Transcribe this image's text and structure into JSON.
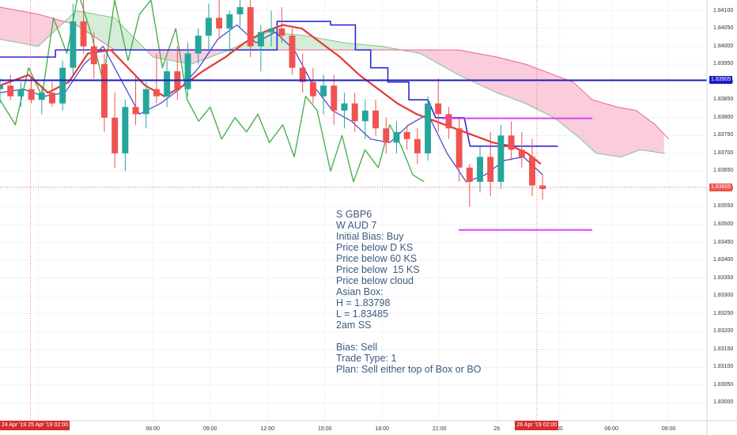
{
  "chart_data": {
    "type": "candlestick",
    "price_axis": {
      "ticks": [
        "1.84100",
        "1.84050",
        "1.84000",
        "1.83950",
        "1.83900",
        "1.83850",
        "1.83800",
        "1.83750",
        "1.83700",
        "1.83650",
        "1.83600",
        "1.83550",
        "1.83500",
        "1.83450",
        "1.83400",
        "1.83350",
        "1.83300",
        "1.83250",
        "1.83200",
        "1.83150",
        "1.83100",
        "1.83050",
        "1.83000"
      ],
      "range": [
        1.8295,
        1.8413
      ]
    },
    "time_axis": {
      "ticks": [
        {
          "label": "00",
          "t": 0
        },
        {
          "label": "06:00",
          "t": 6
        },
        {
          "label": "09:00",
          "t": 9
        },
        {
          "label": "12:00",
          "t": 12
        },
        {
          "label": "15:00",
          "t": 15
        },
        {
          "label": "18:00",
          "t": 18
        },
        {
          "label": "21:00",
          "t": 21
        },
        {
          "label": "26",
          "t": 24
        },
        {
          "label": "00",
          "t": 27.3
        },
        {
          "label": "06:00",
          "t": 30
        },
        {
          "label": "09:00",
          "t": 33
        }
      ],
      "range": [
        -2,
        35
      ]
    },
    "price_tags": [
      {
        "label": "1.83905",
        "value": 1.83905,
        "color": "#1c1cc8"
      },
      {
        "label": "1.83605",
        "value": 1.83605,
        "color": "#ef5350"
      }
    ],
    "time_tags": [
      {
        "label": "24 Apr '19  25 Apr '19  02:00",
        "t": -0.4
      },
      {
        "label": "26 Apr '19  02:00",
        "t": 26.1
      }
    ],
    "horizontal_lines": [
      {
        "name": "Daily Kijun",
        "value": 1.83905,
        "color": "#1c1cc8"
      },
      {
        "name": "Asian box high",
        "value": 1.83798,
        "t_start": 21.1,
        "t_end": 29,
        "color": "#e040fb"
      },
      {
        "name": "Asian box low",
        "value": 1.83485,
        "t_start": 22.0,
        "t_end": 29,
        "color": "#e040fb"
      }
    ],
    "vertical_lines": [
      {
        "t": -0.4,
        "color": "#ef5350"
      },
      {
        "t": 26.1,
        "color": "#ef5350"
      }
    ],
    "crosshair_price": 1.83605,
    "candles": [
      {
        "o": 1.8388,
        "h": 1.8391,
        "l": 1.8384,
        "c": 1.8389
      },
      {
        "o": 1.8389,
        "h": 1.8392,
        "l": 1.8385,
        "c": 1.8386
      },
      {
        "o": 1.8386,
        "h": 1.839,
        "l": 1.8383,
        "c": 1.8388
      },
      {
        "o": 1.8388,
        "h": 1.8391,
        "l": 1.8384,
        "c": 1.8385
      },
      {
        "o": 1.8385,
        "h": 1.8389,
        "l": 1.8381,
        "c": 1.8387
      },
      {
        "o": 1.8387,
        "h": 1.839,
        "l": 1.8383,
        "c": 1.8384
      },
      {
        "o": 1.8384,
        "h": 1.8396,
        "l": 1.8382,
        "c": 1.8394
      },
      {
        "o": 1.8394,
        "h": 1.8412,
        "l": 1.8392,
        "c": 1.8407
      },
      {
        "o": 1.8407,
        "h": 1.8413,
        "l": 1.8398,
        "c": 1.84
      },
      {
        "o": 1.84,
        "h": 1.8404,
        "l": 1.8391,
        "c": 1.8395
      },
      {
        "o": 1.8395,
        "h": 1.8398,
        "l": 1.8376,
        "c": 1.838
      },
      {
        "o": 1.838,
        "h": 1.8387,
        "l": 1.8366,
        "c": 1.837
      },
      {
        "o": 1.837,
        "h": 1.8385,
        "l": 1.8365,
        "c": 1.8383
      },
      {
        "o": 1.8383,
        "h": 1.8392,
        "l": 1.8378,
        "c": 1.8381
      },
      {
        "o": 1.8381,
        "h": 1.839,
        "l": 1.8377,
        "c": 1.8388
      },
      {
        "o": 1.8388,
        "h": 1.8398,
        "l": 1.8384,
        "c": 1.8386
      },
      {
        "o": 1.8386,
        "h": 1.8396,
        "l": 1.8383,
        "c": 1.8393
      },
      {
        "o": 1.8393,
        "h": 1.84,
        "l": 1.8385,
        "c": 1.8388
      },
      {
        "o": 1.8388,
        "h": 1.8401,
        "l": 1.8386,
        "c": 1.8398
      },
      {
        "o": 1.8398,
        "h": 1.8405,
        "l": 1.8395,
        "c": 1.8403
      },
      {
        "o": 1.8403,
        "h": 1.8412,
        "l": 1.8399,
        "c": 1.8408
      },
      {
        "o": 1.8408,
        "h": 1.8413,
        "l": 1.8402,
        "c": 1.8405
      },
      {
        "o": 1.8405,
        "h": 1.841,
        "l": 1.8398,
        "c": 1.8409
      },
      {
        "o": 1.8409,
        "h": 1.8413,
        "l": 1.8405,
        "c": 1.8411
      },
      {
        "o": 1.8411,
        "h": 1.8413,
        "l": 1.8397,
        "c": 1.84
      },
      {
        "o": 1.84,
        "h": 1.8406,
        "l": 1.8393,
        "c": 1.8404
      },
      {
        "o": 1.8404,
        "h": 1.841,
        "l": 1.84,
        "c": 1.8405
      },
      {
        "o": 1.8405,
        "h": 1.8411,
        "l": 1.8401,
        "c": 1.8403
      },
      {
        "o": 1.8403,
        "h": 1.8405,
        "l": 1.8392,
        "c": 1.8394
      },
      {
        "o": 1.8394,
        "h": 1.8398,
        "l": 1.8387,
        "c": 1.839
      },
      {
        "o": 1.839,
        "h": 1.8394,
        "l": 1.8384,
        "c": 1.8386
      },
      {
        "o": 1.8386,
        "h": 1.8392,
        "l": 1.8381,
        "c": 1.8389
      },
      {
        "o": 1.8389,
        "h": 1.8392,
        "l": 1.8378,
        "c": 1.8382
      },
      {
        "o": 1.8382,
        "h": 1.8387,
        "l": 1.8377,
        "c": 1.8384
      },
      {
        "o": 1.8384,
        "h": 1.8387,
        "l": 1.8376,
        "c": 1.8379
      },
      {
        "o": 1.8379,
        "h": 1.8385,
        "l": 1.8374,
        "c": 1.8382
      },
      {
        "o": 1.8382,
        "h": 1.8385,
        "l": 1.8375,
        "c": 1.8377
      },
      {
        "o": 1.8377,
        "h": 1.838,
        "l": 1.837,
        "c": 1.8373
      },
      {
        "o": 1.8373,
        "h": 1.8379,
        "l": 1.837,
        "c": 1.8376
      },
      {
        "o": 1.8376,
        "h": 1.8378,
        "l": 1.8371,
        "c": 1.8374
      },
      {
        "o": 1.8374,
        "h": 1.8377,
        "l": 1.8367,
        "c": 1.837
      },
      {
        "o": 1.837,
        "h": 1.8386,
        "l": 1.8368,
        "c": 1.8384
      },
      {
        "o": 1.8384,
        "h": 1.8391,
        "l": 1.8376,
        "c": 1.8381
      },
      {
        "o": 1.8381,
        "h": 1.8383,
        "l": 1.8374,
        "c": 1.8377
      },
      {
        "o": 1.8377,
        "h": 1.838,
        "l": 1.8362,
        "c": 1.8366
      },
      {
        "o": 1.8366,
        "h": 1.8367,
        "l": 1.8355,
        "c": 1.8362
      },
      {
        "o": 1.8362,
        "h": 1.8372,
        "l": 1.8359,
        "c": 1.8369
      },
      {
        "o": 1.8369,
        "h": 1.8376,
        "l": 1.8358,
        "c": 1.8362
      },
      {
        "o": 1.8362,
        "h": 1.8378,
        "l": 1.836,
        "c": 1.8375
      },
      {
        "o": 1.8375,
        "h": 1.8379,
        "l": 1.8368,
        "c": 1.8371
      },
      {
        "o": 1.8371,
        "h": 1.8376,
        "l": 1.8366,
        "c": 1.8369
      },
      {
        "o": 1.8369,
        "h": 1.8374,
        "l": 1.8358,
        "c": 1.8361
      },
      {
        "o": 1.8361,
        "h": 1.8364,
        "l": 1.8357,
        "c": 1.836
      }
    ],
    "chikou": [
      {
        "t": -2,
        "v": 1.8385
      },
      {
        "t": -1.2,
        "v": 1.8378
      },
      {
        "t": -0.5,
        "v": 1.8394
      },
      {
        "t": 0.2,
        "v": 1.8386
      },
      {
        "t": 0.8,
        "v": 1.8408
      },
      {
        "t": 1.5,
        "v": 1.8398
      },
      {
        "t": 2.1,
        "v": 1.8415
      },
      {
        "t": 2.8,
        "v": 1.8403
      },
      {
        "t": 3.4,
        "v": 1.839
      },
      {
        "t": 4.0,
        "v": 1.8413
      },
      {
        "t": 4.7,
        "v": 1.8396
      },
      {
        "t": 5.3,
        "v": 1.8409
      },
      {
        "t": 5.9,
        "v": 1.8413
      },
      {
        "t": 6.5,
        "v": 1.8394
      },
      {
        "t": 7.2,
        "v": 1.8405
      },
      {
        "t": 7.8,
        "v": 1.8385
      },
      {
        "t": 8.4,
        "v": 1.8379
      },
      {
        "t": 9.0,
        "v": 1.8383
      },
      {
        "t": 9.6,
        "v": 1.8374
      },
      {
        "t": 10.3,
        "v": 1.838
      },
      {
        "t": 10.9,
        "v": 1.8376
      },
      {
        "t": 11.5,
        "v": 1.8381
      },
      {
        "t": 12.1,
        "v": 1.8373
      },
      {
        "t": 12.8,
        "v": 1.8378
      },
      {
        "t": 13.4,
        "v": 1.8369
      },
      {
        "t": 14.0,
        "v": 1.8386
      },
      {
        "t": 14.6,
        "v": 1.8382
      },
      {
        "t": 15.3,
        "v": 1.8365
      },
      {
        "t": 15.9,
        "v": 1.8375
      },
      {
        "t": 16.5,
        "v": 1.8362
      },
      {
        "t": 17.1,
        "v": 1.8371
      },
      {
        "t": 17.8,
        "v": 1.8366
      },
      {
        "t": 18.4,
        "v": 1.8378
      },
      {
        "t": 19.0,
        "v": 1.8372
      },
      {
        "t": 19.6,
        "v": 1.8364
      },
      {
        "t": 20.2,
        "v": 1.8362
      }
    ],
    "kijun_60": [
      {
        "t": -2,
        "v": 1.8397
      },
      {
        "t": 0.9,
        "v": 1.8397
      },
      {
        "t": 0.9,
        "v": 1.8399
      },
      {
        "t": 12.5,
        "v": 1.8399
      },
      {
        "t": 12.5,
        "v": 1.8407
      },
      {
        "t": 15.3,
        "v": 1.8407
      },
      {
        "t": 15.3,
        "v": 1.8406
      },
      {
        "t": 16.6,
        "v": 1.8406
      },
      {
        "t": 16.6,
        "v": 1.8399
      },
      {
        "t": 17.4,
        "v": 1.8399
      },
      {
        "t": 17.4,
        "v": 1.8394
      },
      {
        "t": 18.3,
        "v": 1.8394
      },
      {
        "t": 18.3,
        "v": 1.839
      },
      {
        "t": 19.4,
        "v": 1.839
      },
      {
        "t": 19.4,
        "v": 1.8385
      },
      {
        "t": 20.4,
        "v": 1.8385
      },
      {
        "t": 20.8,
        "v": 1.838
      },
      {
        "t": 22.3,
        "v": 1.838
      },
      {
        "t": 22.6,
        "v": 1.8372
      },
      {
        "t": 27.2,
        "v": 1.8372
      }
    ],
    "kijun_15": [
      {
        "t": -2,
        "v": 1.8389
      },
      {
        "t": -0.5,
        "v": 1.8392
      },
      {
        "t": 0.5,
        "v": 1.8387
      },
      {
        "t": 1.6,
        "v": 1.839
      },
      {
        "t": 2.6,
        "v": 1.8398
      },
      {
        "t": 3.8,
        "v": 1.8399
      },
      {
        "t": 4.7,
        "v": 1.8394
      },
      {
        "t": 5.6,
        "v": 1.8389
      },
      {
        "t": 6.6,
        "v": 1.8386
      },
      {
        "t": 7.6,
        "v": 1.8389
      },
      {
        "t": 8.6,
        "v": 1.8393
      },
      {
        "t": 9.8,
        "v": 1.8397
      },
      {
        "t": 10.8,
        "v": 1.8401
      },
      {
        "t": 11.8,
        "v": 1.8404
      },
      {
        "t": 12.8,
        "v": 1.8406
      },
      {
        "t": 13.8,
        "v": 1.8405
      },
      {
        "t": 14.8,
        "v": 1.8401
      },
      {
        "t": 15.8,
        "v": 1.8397
      },
      {
        "t": 16.8,
        "v": 1.8392
      },
      {
        "t": 17.8,
        "v": 1.8388
      },
      {
        "t": 18.8,
        "v": 1.8384
      },
      {
        "t": 19.8,
        "v": 1.8381
      },
      {
        "t": 20.8,
        "v": 1.8379
      },
      {
        "t": 21.8,
        "v": 1.8377
      },
      {
        "t": 22.8,
        "v": 1.8375
      },
      {
        "t": 23.8,
        "v": 1.8373
      },
      {
        "t": 24.8,
        "v": 1.8372
      },
      {
        "t": 25.6,
        "v": 1.837
      },
      {
        "t": 26.3,
        "v": 1.8367
      }
    ],
    "tenkan": [
      {
        "t": -2,
        "v": 1.8387
      },
      {
        "t": -0.8,
        "v": 1.8388
      },
      {
        "t": 0.3,
        "v": 1.8386
      },
      {
        "t": 1.4,
        "v": 1.8387
      },
      {
        "t": 2.4,
        "v": 1.8395
      },
      {
        "t": 3.4,
        "v": 1.84
      },
      {
        "t": 4.4,
        "v": 1.839
      },
      {
        "t": 5.3,
        "v": 1.8381
      },
      {
        "t": 6.4,
        "v": 1.8384
      },
      {
        "t": 7.4,
        "v": 1.8388
      },
      {
        "t": 8.4,
        "v": 1.8394
      },
      {
        "t": 9.4,
        "v": 1.8402
      },
      {
        "t": 10.4,
        "v": 1.8406
      },
      {
        "t": 11.4,
        "v": 1.8401
      },
      {
        "t": 12.4,
        "v": 1.8404
      },
      {
        "t": 13.4,
        "v": 1.8399
      },
      {
        "t": 14.4,
        "v": 1.8389
      },
      {
        "t": 15.4,
        "v": 1.8382
      },
      {
        "t": 16.4,
        "v": 1.8379
      },
      {
        "t": 17.4,
        "v": 1.8374
      },
      {
        "t": 18.4,
        "v": 1.8373
      },
      {
        "t": 19.4,
        "v": 1.8378
      },
      {
        "t": 20.4,
        "v": 1.8381
      },
      {
        "t": 21.4,
        "v": 1.837
      },
      {
        "t": 22.4,
        "v": 1.8362
      },
      {
        "t": 23.4,
        "v": 1.8364
      },
      {
        "t": 24.4,
        "v": 1.8368
      },
      {
        "t": 25.4,
        "v": 1.8369
      },
      {
        "t": 26.4,
        "v": 1.8364
      }
    ],
    "senkou_a": [
      {
        "t": -2,
        "v": 1.8402
      },
      {
        "t": 0,
        "v": 1.84
      },
      {
        "t": 2,
        "v": 1.841
      },
      {
        "t": 4,
        "v": 1.8408
      },
      {
        "t": 6,
        "v": 1.8397
      },
      {
        "t": 8,
        "v": 1.8395
      },
      {
        "t": 10,
        "v": 1.8399
      },
      {
        "t": 12,
        "v": 1.8404
      },
      {
        "t": 14,
        "v": 1.8403
      },
      {
        "t": 16,
        "v": 1.8401
      },
      {
        "t": 18,
        "v": 1.84
      },
      {
        "t": 20,
        "v": 1.8398
      },
      {
        "t": 22,
        "v": 1.8392
      },
      {
        "t": 24,
        "v": 1.8387
      },
      {
        "t": 25.5,
        "v": 1.8384
      },
      {
        "t": 27,
        "v": 1.838
      },
      {
        "t": 28.4,
        "v": 1.8374
      },
      {
        "t": 29.2,
        "v": 1.837
      },
      {
        "t": 30.5,
        "v": 1.8369
      },
      {
        "t": 31.5,
        "v": 1.8371
      },
      {
        "t": 32.8,
        "v": 1.837
      }
    ],
    "senkou_b": [
      {
        "t": -2,
        "v": 1.8411
      },
      {
        "t": 0,
        "v": 1.8409
      },
      {
        "t": 2,
        "v": 1.8406
      },
      {
        "t": 4,
        "v": 1.8399
      },
      {
        "t": 6,
        "v": 1.8399
      },
      {
        "t": 8,
        "v": 1.8399
      },
      {
        "t": 10,
        "v": 1.8399
      },
      {
        "t": 12,
        "v": 1.8399
      },
      {
        "t": 14,
        "v": 1.8399
      },
      {
        "t": 16,
        "v": 1.8399
      },
      {
        "t": 18,
        "v": 1.8399
      },
      {
        "t": 20,
        "v": 1.8399
      },
      {
        "t": 22,
        "v": 1.8399
      },
      {
        "t": 24,
        "v": 1.8397
      },
      {
        "t": 25.5,
        "v": 1.8395
      },
      {
        "t": 27,
        "v": 1.8392
      },
      {
        "t": 28,
        "v": 1.839
      },
      {
        "t": 29,
        "v": 1.8385
      },
      {
        "t": 30.3,
        "v": 1.8383
      },
      {
        "t": 31.3,
        "v": 1.8382
      },
      {
        "t": 32.3,
        "v": 1.8378
      },
      {
        "t": 33,
        "v": 1.8374
      }
    ]
  },
  "annotation": {
    "lines": [
      "S GBP6",
      "W AUD 7",
      "Initial Bias: Buy",
      "Price below D KS",
      "Price below 60 KS",
      "Price below  15 KS",
      "Price below cloud",
      "Asian Box:",
      "H = 1.83798",
      "L = 1.83485",
      "2am SS",
      "",
      "Bias: Sell",
      "Trade Type: 1",
      "Plan: Sell either top of Box or BO"
    ]
  },
  "colors": {
    "bull": "#26a69a",
    "bear": "#ef5350",
    "chikou": "#4caf50",
    "kijun_60": "#2a2ad6",
    "kijun_15": "#e53935",
    "tenkan": "#3f3fcf",
    "cloud_bear": "#f8bbd0",
    "cloud_bull": "#c8e6c9",
    "senkou_a_line": "#81c784",
    "senkou_b_line": "#f06292",
    "box": "#e040fb",
    "grid": "#f0f3fa",
    "crosshair": "#ef5350"
  }
}
